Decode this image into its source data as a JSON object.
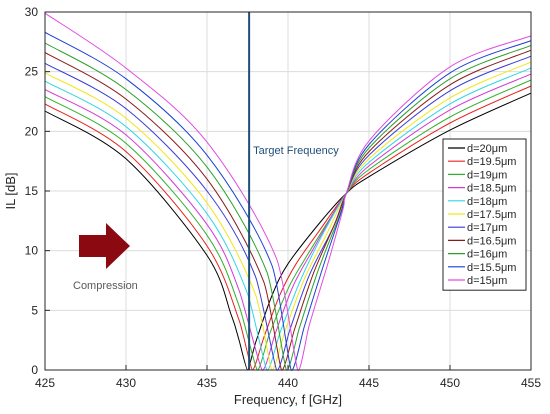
{
  "chart_data": {
    "type": "line",
    "xlabel": "Frequency, f [GHz]",
    "ylabel": "IL [dB]",
    "xlim": [
      425,
      455
    ],
    "ylim": [
      0,
      30
    ],
    "xticks": [
      425,
      430,
      435,
      440,
      445,
      450,
      455
    ],
    "yticks": [
      0,
      5,
      10,
      15,
      20,
      25,
      30
    ],
    "grid": true,
    "legend_position": "right",
    "target_frequency": {
      "x": 437.6,
      "label": "Target Frequency",
      "color": "#1f4e79"
    },
    "annotation": {
      "label": "Compression",
      "arrow_color": "#8b0a12",
      "text_color": "#595959"
    },
    "series": [
      {
        "name": "d=20μm",
        "color": "#000000",
        "values": [
          [
            425,
            21.7
          ],
          [
            430,
            17.7
          ],
          [
            435,
            9.6
          ],
          [
            436.5,
            4.6
          ],
          [
            437,
            2.4
          ],
          [
            437.5,
            0
          ],
          [
            438,
            2.3
          ],
          [
            439,
            6.2
          ],
          [
            440,
            8.9
          ],
          [
            442,
            12.4
          ],
          [
            443.6,
            14.8
          ],
          [
            445,
            16.2
          ],
          [
            450,
            20.1
          ],
          [
            455,
            23.2
          ]
        ]
      },
      {
        "name": "d=19.5μm",
        "color": "#e8211d",
        "values": [
          [
            425,
            22.3
          ],
          [
            430,
            18.3
          ],
          [
            435,
            10.4
          ],
          [
            437,
            4.1
          ],
          [
            437.8,
            0
          ],
          [
            438.5,
            2.7
          ],
          [
            439.5,
            6.3
          ],
          [
            440.5,
            8.9
          ],
          [
            442,
            11.8
          ],
          [
            443.6,
            14.8
          ],
          [
            445,
            16.5
          ],
          [
            450,
            20.7
          ],
          [
            455,
            23.8
          ]
        ]
      },
      {
        "name": "d=19μm",
        "color": "#33b12f",
        "values": [
          [
            425,
            22.9
          ],
          [
            430,
            19.0
          ],
          [
            435,
            11.3
          ],
          [
            437,
            5.3
          ],
          [
            438.1,
            0
          ],
          [
            438.8,
            2.8
          ],
          [
            440,
            6.8
          ],
          [
            441,
            9.2
          ],
          [
            442.5,
            12.5
          ],
          [
            443.6,
            14.8
          ],
          [
            445,
            16.8
          ],
          [
            450,
            21.2
          ],
          [
            455,
            24.3
          ]
        ]
      },
      {
        "name": "d=18.5μm",
        "color": "#d23cd2",
        "values": [
          [
            425,
            23.5
          ],
          [
            430,
            19.7
          ],
          [
            435,
            12.2
          ],
          [
            437,
            6.6
          ],
          [
            438.4,
            0
          ],
          [
            439.2,
            3.0
          ],
          [
            440.3,
            7.0
          ],
          [
            441.5,
            10.0
          ],
          [
            443,
            13.6
          ],
          [
            443.6,
            14.8
          ],
          [
            445,
            17.1
          ],
          [
            450,
            21.8
          ],
          [
            455,
            24.8
          ]
        ]
      },
      {
        "name": "d=18μm",
        "color": "#2fd6e6",
        "values": [
          [
            425,
            24.2
          ],
          [
            430,
            20.4
          ],
          [
            435,
            13.1
          ],
          [
            437.5,
            6.4
          ],
          [
            438.7,
            0
          ],
          [
            439.5,
            3.1
          ],
          [
            440.7,
            7.3
          ],
          [
            442,
            11.0
          ],
          [
            443.6,
            14.8
          ],
          [
            445,
            17.4
          ],
          [
            450,
            22.3
          ],
          [
            455,
            25.3
          ]
        ]
      },
      {
        "name": "d=17.5μm",
        "color": "#f2e61a",
        "values": [
          [
            425,
            24.9
          ],
          [
            430,
            21.1
          ],
          [
            435,
            14.0
          ],
          [
            438,
            6.3
          ],
          [
            439,
            0
          ],
          [
            439.8,
            3.2
          ],
          [
            441,
            7.6
          ],
          [
            442.5,
            11.7
          ],
          [
            443.6,
            14.8
          ],
          [
            445,
            17.7
          ],
          [
            450,
            22.8
          ],
          [
            455,
            25.8
          ]
        ]
      },
      {
        "name": "d=17μm",
        "color": "#3a3ad6",
        "values": [
          [
            425,
            25.7
          ],
          [
            430,
            21.9
          ],
          [
            435,
            15.0
          ],
          [
            438,
            7.8
          ],
          [
            439.3,
            0
          ],
          [
            440.1,
            3.3
          ],
          [
            441.3,
            7.9
          ],
          [
            442.8,
            12.0
          ],
          [
            443.6,
            14.8
          ],
          [
            445,
            18.0
          ],
          [
            450,
            23.4
          ],
          [
            455,
            26.3
          ]
        ]
      },
      {
        "name": "d=16.5μm",
        "color": "#8b1a1a",
        "values": [
          [
            425,
            26.6
          ],
          [
            430,
            22.7
          ],
          [
            435,
            16.0
          ],
          [
            438.5,
            7.4
          ],
          [
            439.6,
            0
          ],
          [
            440.4,
            3.4
          ],
          [
            441.6,
            8.2
          ],
          [
            443,
            12.6
          ],
          [
            443.6,
            14.8
          ],
          [
            445,
            18.3
          ],
          [
            450,
            23.9
          ],
          [
            455,
            26.8
          ]
        ]
      },
      {
        "name": "d=16μm",
        "color": "#2ca02c",
        "values": [
          [
            425,
            27.4
          ],
          [
            430,
            23.5
          ],
          [
            435,
            17.0
          ],
          [
            438.7,
            8.2
          ],
          [
            439.9,
            0
          ],
          [
            440.7,
            3.5
          ],
          [
            441.9,
            8.5
          ],
          [
            443.2,
            13.0
          ],
          [
            443.6,
            14.8
          ],
          [
            445,
            18.6
          ],
          [
            450,
            24.4
          ],
          [
            455,
            27.2
          ]
        ]
      },
      {
        "name": "d=15.5μm",
        "color": "#1a3fd6",
        "values": [
          [
            425,
            28.3
          ],
          [
            430,
            24.4
          ],
          [
            435,
            18.0
          ],
          [
            439,
            8.8
          ],
          [
            440.2,
            0
          ],
          [
            441,
            3.6
          ],
          [
            442.2,
            8.8
          ],
          [
            443.3,
            13.3
          ],
          [
            443.6,
            14.8
          ],
          [
            445,
            18.9
          ],
          [
            450,
            24.9
          ],
          [
            455,
            27.6
          ]
        ]
      },
      {
        "name": "d=15μm",
        "color": "#e04ce0",
        "values": [
          [
            425,
            29.9
          ],
          [
            430,
            25.3
          ],
          [
            435,
            19.1
          ],
          [
            439.3,
            9.3
          ],
          [
            440.6,
            0
          ],
          [
            441.3,
            3.7
          ],
          [
            442.5,
            9.1
          ],
          [
            443.4,
            13.5
          ],
          [
            443.6,
            14.8
          ],
          [
            445,
            19.2
          ],
          [
            450,
            25.4
          ],
          [
            455,
            28.0
          ]
        ]
      }
    ]
  }
}
